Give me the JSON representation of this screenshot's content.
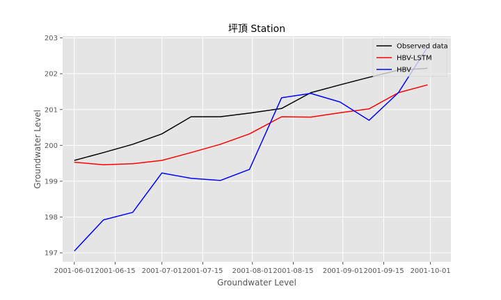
{
  "chart_data": {
    "type": "line",
    "title": "坪頂 Station",
    "xlabel": "Groundwater Level",
    "ylabel": "Groundwater Level",
    "x": [
      "2001-06-01",
      "2001-06-11",
      "2001-06-21",
      "2001-07-01",
      "2001-07-11",
      "2001-07-21",
      "2001-07-31",
      "2001-08-11",
      "2001-08-21",
      "2001-08-31",
      "2001-09-10",
      "2001-09-20",
      "2001-09-30"
    ],
    "xticks": [
      "2001-06-01",
      "2001-06-15",
      "2001-07-01",
      "2001-07-15",
      "2001-08-01",
      "2001-08-15",
      "2001-09-01",
      "2001-09-15",
      "2001-10-01"
    ],
    "xlim": [
      "2001-05-28",
      "2001-10-08"
    ],
    "ylim": [
      196.75,
      203.05
    ],
    "yticks": [
      197,
      198,
      199,
      200,
      201,
      202,
      203
    ],
    "grid": true,
    "legend_position": "top-right",
    "series": [
      {
        "name": "Observed data",
        "color": "#000000",
        "values": [
          199.58,
          199.8,
          200.03,
          200.32,
          200.8,
          200.8,
          200.9,
          201.03,
          201.47,
          201.69,
          201.9,
          202.1,
          202.15
        ]
      },
      {
        "name": "HBV-LSTM",
        "color": "#ff0000",
        "values": [
          199.53,
          199.46,
          199.49,
          199.58,
          199.8,
          200.03,
          200.32,
          200.8,
          200.79,
          200.91,
          201.02,
          201.47,
          201.69
        ]
      },
      {
        "name": "HBV",
        "color": "#0000ff",
        "values": [
          197.05,
          197.92,
          198.13,
          199.23,
          199.08,
          199.02,
          199.33,
          201.33,
          201.45,
          201.21,
          200.7,
          201.47,
          202.74
        ]
      }
    ]
  }
}
